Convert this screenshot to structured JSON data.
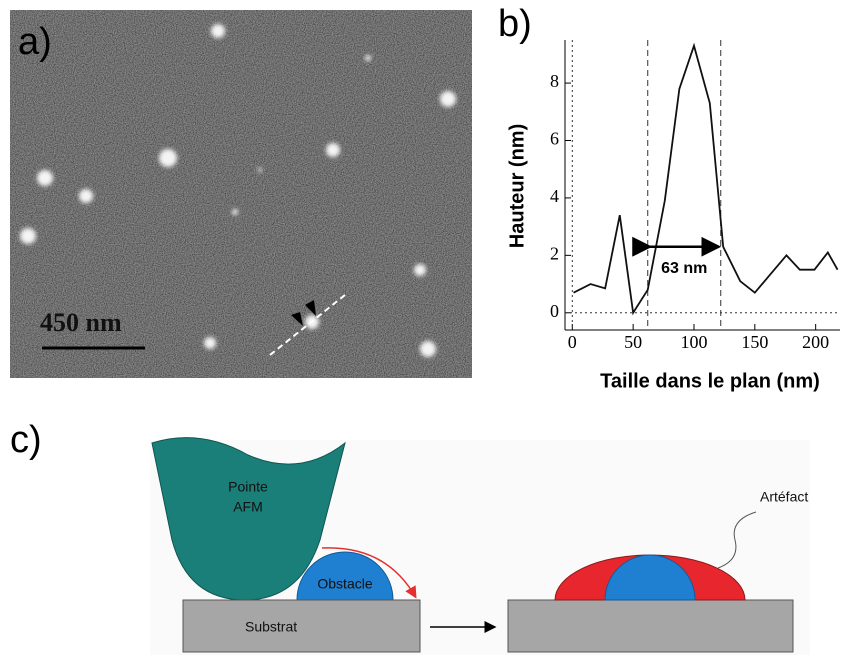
{
  "panel_labels": [
    "a)",
    "b)",
    "c)"
  ],
  "image": {
    "scale_bar": "450 nm"
  },
  "chart_data": {
    "type": "line",
    "xlabel": "Taille dans le plan (nm)",
    "ylabel": "Hauteur (nm)",
    "x": [
      1,
      15,
      27,
      39,
      50,
      62,
      76,
      88,
      100,
      113,
      124,
      138,
      150,
      162,
      176,
      187,
      199,
      210,
      218
    ],
    "values": [
      0.7,
      1.0,
      0.85,
      3.4,
      0.0,
      0.8,
      3.9,
      7.8,
      9.3,
      7.3,
      2.3,
      1.1,
      0.7,
      1.3,
      2.0,
      1.5,
      1.5,
      2.1,
      1.5
    ],
    "color": "#111111",
    "xlim": [
      -6,
      220
    ],
    "ylim": [
      -0.6,
      9.5
    ],
    "xticks": [
      0,
      50,
      100,
      150,
      200
    ],
    "yticks": [
      0,
      2,
      4,
      6,
      8
    ],
    "vlines": [
      0,
      62,
      122
    ],
    "hlines": [
      0
    ],
    "annotation": {
      "text": "63 nm",
      "x": [
        62,
        122
      ],
      "y": 2.3
    }
  },
  "diagram": {
    "tip": [
      "Pointe",
      "AFM"
    ],
    "obstacle": "Obstacle",
    "substrate": "Substrat",
    "artefact": "Artéfact"
  }
}
